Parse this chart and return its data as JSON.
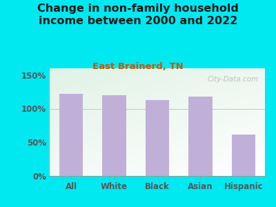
{
  "title": "Change in non-family household\nincome between 2000 and 2022",
  "subtitle": "East Brainerd, TN",
  "categories": [
    "All",
    "White",
    "Black",
    "Asian",
    "Hispanic"
  ],
  "values": [
    122,
    120,
    113,
    118,
    62
  ],
  "bar_color": "#c0b0d8",
  "title_fontsize": 11.5,
  "subtitle_fontsize": 9.5,
  "subtitle_color": "#cc5500",
  "tick_label_color": "#555555",
  "ylim": [
    0,
    160
  ],
  "yticks": [
    0,
    50,
    100,
    150
  ],
  "ytick_labels": [
    "0%",
    "50%",
    "100%",
    "150%"
  ],
  "bg_outer": "#00e8f0",
  "watermark": "City-Data.com",
  "watermark_color": "#aaaaaa"
}
